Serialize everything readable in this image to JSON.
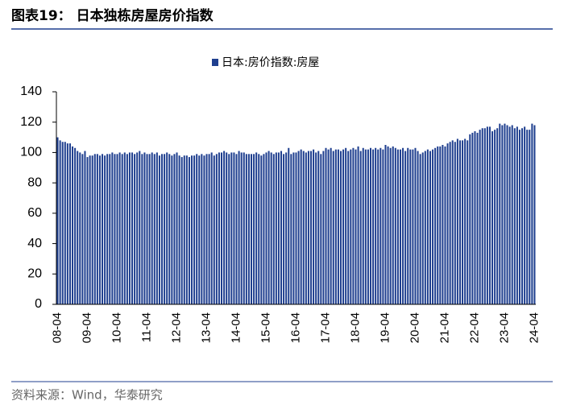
{
  "chart_data": {
    "type": "bar",
    "title": "图表19：  日本独栋房屋房价指数",
    "source": "资料来源：Wind，华泰研究",
    "series": [
      {
        "name": "日本:房价指数:房屋",
        "color": "#1f3f8f",
        "values": [
          110,
          108,
          107,
          107,
          106,
          106,
          104,
          103,
          101,
          100,
          99,
          101,
          97,
          98,
          98,
          99,
          99,
          98,
          99,
          98,
          99,
          99,
          100,
          99,
          99,
          100,
          99,
          100,
          99,
          100,
          100,
          99,
          100,
          101,
          99,
          100,
          99,
          99,
          100,
          99,
          100,
          98,
          99,
          99,
          100,
          99,
          98,
          99,
          100,
          98,
          97,
          98,
          98,
          97,
          98,
          98,
          99,
          98,
          99,
          98,
          99,
          99,
          100,
          98,
          99,
          100,
          100,
          101,
          100,
          99,
          100,
          100,
          99,
          101,
          100,
          100,
          99,
          99,
          99,
          99,
          100,
          99,
          98,
          99,
          100,
          101,
          100,
          99,
          100,
          100,
          101,
          99,
          100,
          103,
          99,
          100,
          100,
          101,
          102,
          101,
          100,
          101,
          101,
          102,
          100,
          101,
          99,
          101,
          103,
          102,
          103,
          101,
          102,
          102,
          101,
          102,
          103,
          101,
          102,
          103,
          102,
          104,
          101,
          103,
          102,
          102,
          103,
          102,
          103,
          102,
          103,
          102,
          105,
          104,
          103,
          104,
          103,
          102,
          102,
          103,
          101,
          103,
          102,
          102,
          103,
          101,
          99,
          100,
          101,
          102,
          101,
          102,
          103,
          104,
          104,
          105,
          104,
          106,
          107,
          108,
          107,
          109,
          108,
          108,
          109,
          108,
          112,
          113,
          114,
          113,
          115,
          116,
          116,
          117,
          117,
          114,
          115,
          116,
          119,
          118,
          119,
          118,
          117,
          118,
          116,
          117,
          115,
          116,
          117,
          115,
          115,
          119,
          118
        ]
      }
    ],
    "categories": [
      "08-04",
      null,
      null,
      null,
      null,
      null,
      null,
      null,
      null,
      null,
      null,
      null,
      "09-04",
      null,
      null,
      null,
      null,
      null,
      null,
      null,
      null,
      null,
      null,
      null,
      "10-04",
      null,
      null,
      null,
      null,
      null,
      null,
      null,
      null,
      null,
      null,
      null,
      "11-04",
      null,
      null,
      null,
      null,
      null,
      null,
      null,
      null,
      null,
      null,
      null,
      "12-04",
      null,
      null,
      null,
      null,
      null,
      null,
      null,
      null,
      null,
      null,
      null,
      "13-04",
      null,
      null,
      null,
      null,
      null,
      null,
      null,
      null,
      null,
      null,
      null,
      "14-04",
      null,
      null,
      null,
      null,
      null,
      null,
      null,
      null,
      null,
      null,
      null,
      "15-04",
      null,
      null,
      null,
      null,
      null,
      null,
      null,
      null,
      null,
      null,
      null,
      "16-04",
      null,
      null,
      null,
      null,
      null,
      null,
      null,
      null,
      null,
      null,
      null,
      "17-04",
      null,
      null,
      null,
      null,
      null,
      null,
      null,
      null,
      null,
      null,
      null,
      "18-04",
      null,
      null,
      null,
      null,
      null,
      null,
      null,
      null,
      null,
      null,
      null,
      "19-04",
      null,
      null,
      null,
      null,
      null,
      null,
      null,
      null,
      null,
      null,
      null,
      "20-04",
      null,
      null,
      null,
      null,
      null,
      null,
      null,
      null,
      null,
      null,
      null,
      "21-04",
      null,
      null,
      null,
      null,
      null,
      null,
      null,
      null,
      null,
      null,
      null,
      "22-04",
      null,
      null,
      null,
      null,
      null,
      null,
      null,
      null,
      null,
      null,
      null,
      "23-04",
      null,
      null,
      null,
      null,
      null,
      null,
      null,
      null,
      null,
      null,
      null,
      "24-04"
    ],
    "ylim": [
      0,
      140
    ],
    "yticks": [
      0,
      20,
      40,
      60,
      80,
      100,
      120,
      140
    ],
    "legend": "top"
  }
}
